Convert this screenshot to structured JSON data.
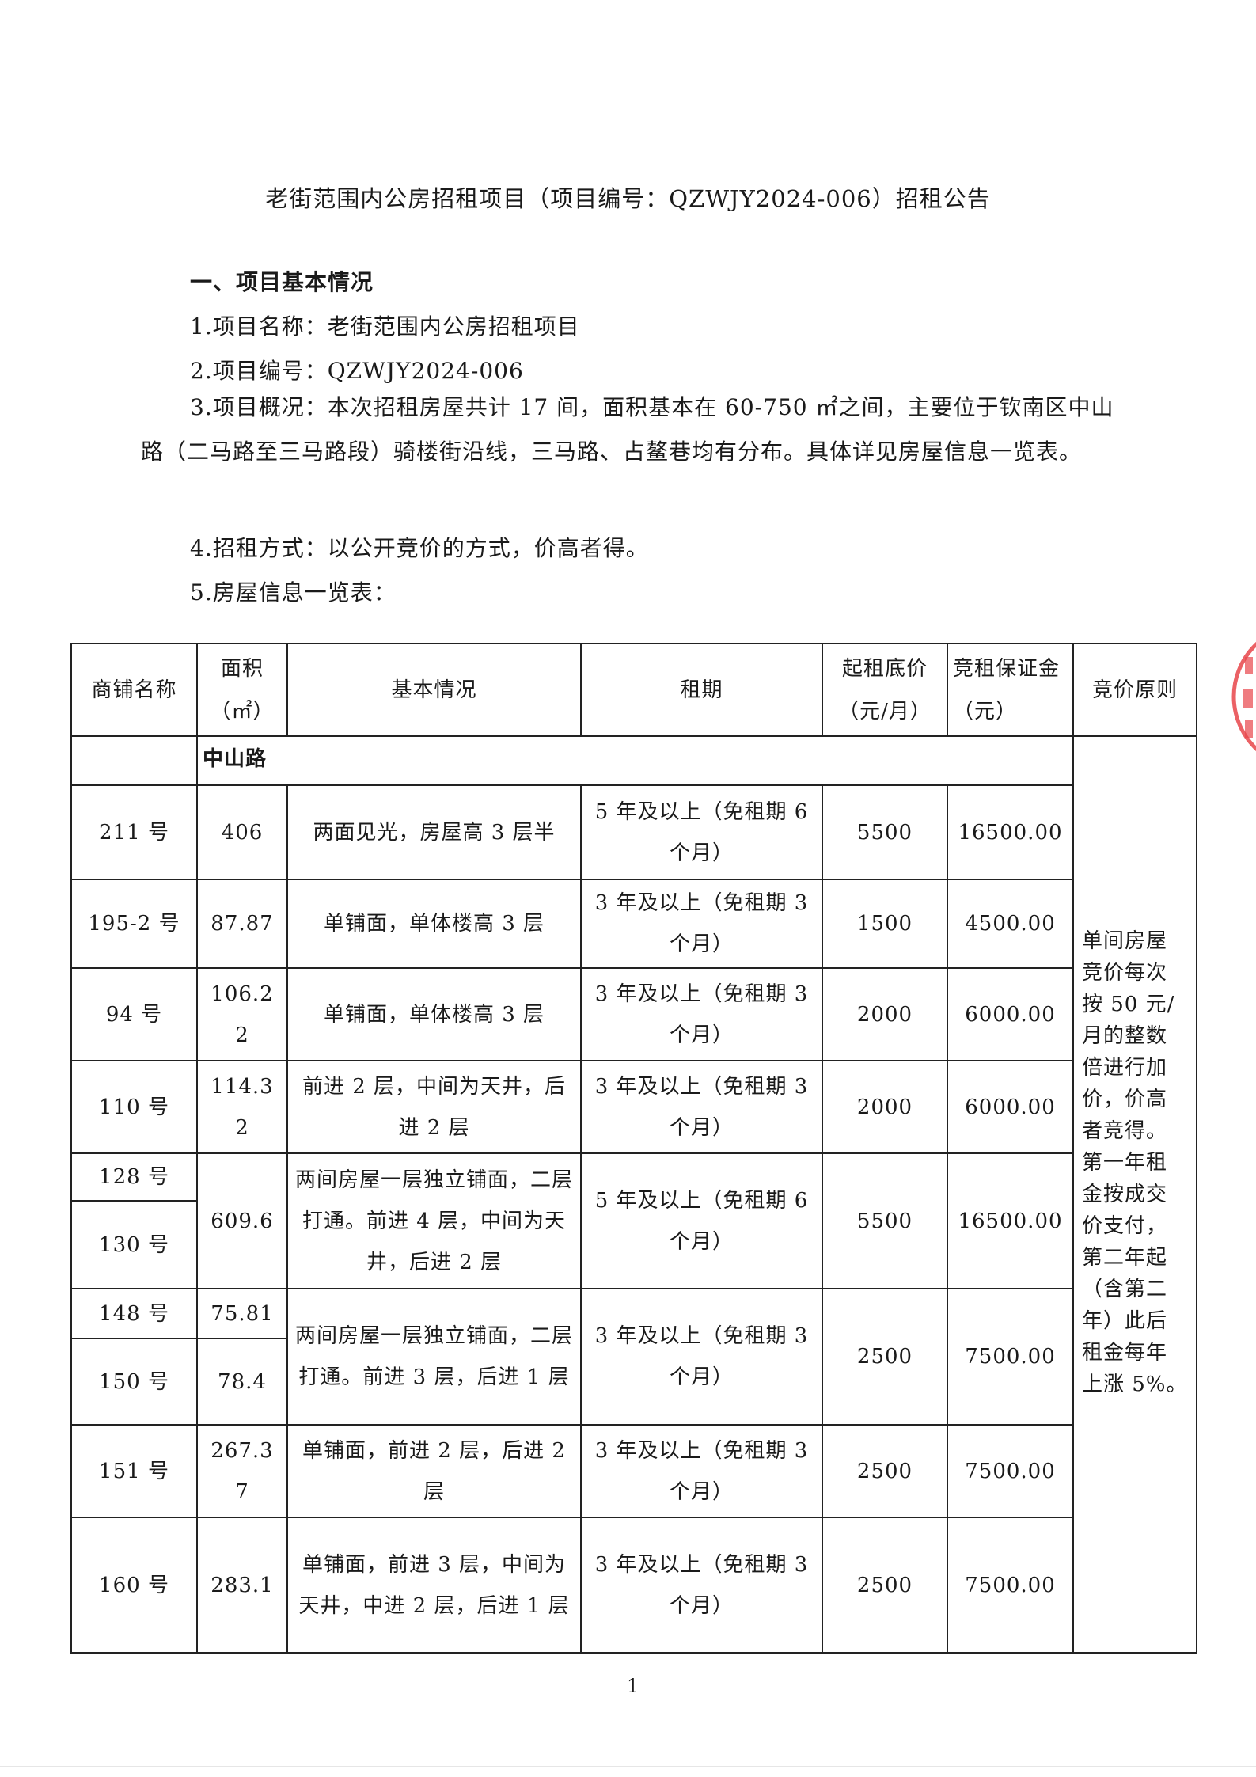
{
  "title": "老街范围内公房招租项目（项目编号：QZWJY2024-006）招租公告",
  "section1": "一、项目基本情况",
  "items": [
    "1.项目名称：老街范围内公房招租项目",
    "2.项目编号：QZWJY2024-006",
    "3.项目概况：本次招租房屋共计 17 间，面积基本在 60-750 ㎡之间，主要位于钦南区中山路（二马路至三马路段）骑楼街沿线，三马路、占鳌巷均有分布。具体详见房屋信息一览表。",
    "4.招租方式：以公开竞价的方式，价高者得。",
    "5.房屋信息一览表："
  ],
  "table": {
    "headers": [
      "商铺名称",
      "面积（㎡）",
      "基本情况",
      "租期",
      "起租底价（元/月）",
      "竞租保证金（元）",
      "竞价原则"
    ],
    "road": "中山路",
    "rule": "单间房屋竞价每次按 50 元/月的整数倍进行加价，价高者竞得。第一年租金按成交价支付，第二年起（含第二年）此后租金每年上涨 5%。",
    "rows": [
      {
        "name": "211 号",
        "area": "406",
        "desc": "两面见光，房屋高 3 层半",
        "term": "5 年及以上（免租期 6 个月）",
        "price": "5500",
        "deposit": "16500.00"
      },
      {
        "name": "195-2 号",
        "area": "87.87",
        "desc": "单铺面，单体楼高 3 层",
        "term": "3 年及以上（免租期 3 个月）",
        "price": "1500",
        "deposit": "4500.00"
      },
      {
        "name": "94 号",
        "area": "106.22",
        "desc": "单铺面，单体楼高 3 层",
        "term": "3 年及以上（免租期 3 个月）",
        "price": "2000",
        "deposit": "6000.00"
      },
      {
        "name": "110 号",
        "area": "114.32",
        "desc": "前进 2 层，中间为天井，后进 2 层",
        "term": "3 年及以上（免租期 3 个月）",
        "price": "2000",
        "deposit": "6000.00"
      },
      {
        "name": "128 号",
        "name2": "130 号",
        "area": "609.6",
        "desc": "两间房屋一层独立铺面，二层打通。前进 4 层，中间为天井，后进 2 层",
        "term": "5 年及以上（免租期 6 个月）",
        "price": "5500",
        "deposit": "16500.00"
      },
      {
        "name": "148 号",
        "area": "75.81",
        "name2": "150 号",
        "area2": "78.4",
        "desc": "两间房屋一层独立铺面，二层打通。前进 3 层，后进 1 层",
        "term": "3 年及以上（免租期 3 个月）",
        "price": "2500",
        "deposit": "7500.00"
      },
      {
        "name": "151 号",
        "area": "267.37",
        "desc": "单铺面，前进 2 层，后进 2 层",
        "term": "3 年及以上（免租期 3 个月）",
        "price": "2500",
        "deposit": "7500.00"
      },
      {
        "name": "160 号",
        "area": "283.1",
        "desc": "单铺面，前进 3 层，中间为天井，中进 2 层，后进 1 层",
        "term": "3 年及以上（免租期 3 个月）",
        "price": "2500",
        "deposit": "7500.00"
      }
    ]
  },
  "page_number": "1",
  "stamp_color": "#e8454a"
}
